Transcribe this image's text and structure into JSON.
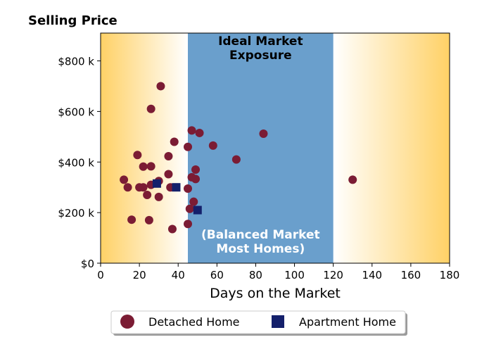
{
  "chart_data": {
    "type": "scatter",
    "title": "Selling Price",
    "xlabel": "Days on the Market",
    "ylabel": "",
    "xlim": [
      0,
      180
    ],
    "ylim": [
      0,
      910000
    ],
    "x_ticks": [
      0,
      20,
      40,
      60,
      80,
      100,
      120,
      140,
      160,
      180
    ],
    "x_tick_labels": [
      "0",
      "20",
      "40",
      "60",
      "80",
      "100",
      "120",
      "140",
      "160",
      "180"
    ],
    "y_ticks": [
      0,
      200000,
      400000,
      600000,
      800000
    ],
    "y_tick_labels": [
      "$0",
      "$200 k",
      "$400 k",
      "$600 k",
      "$800 k"
    ],
    "grid": false,
    "shaded_region": {
      "x_range": [
        45,
        120
      ],
      "color": "#6a9fcc",
      "label_top": [
        "Ideal Market",
        "Exposure"
      ],
      "label_bottom": [
        "(Balanced Market",
        "Most Homes)"
      ]
    },
    "background_gradient_color": "#ffd166",
    "legend_position": "bottom-center",
    "series": [
      {
        "name": "Detached Home",
        "marker": "circle",
        "color": "#7b1c34",
        "points": [
          [
            12,
            330000
          ],
          [
            14,
            300000
          ],
          [
            16,
            172000
          ],
          [
            19,
            428000
          ],
          [
            20,
            300000
          ],
          [
            22,
            382000
          ],
          [
            22,
            300000
          ],
          [
            24,
            270000
          ],
          [
            25,
            170000
          ],
          [
            26,
            383000
          ],
          [
            26,
            310000
          ],
          [
            26,
            610000
          ],
          [
            30,
            325000
          ],
          [
            30,
            262000
          ],
          [
            31,
            700000
          ],
          [
            35,
            423000
          ],
          [
            35,
            352000
          ],
          [
            36,
            300000
          ],
          [
            37,
            135000
          ],
          [
            38,
            480000
          ],
          [
            45,
            460000
          ],
          [
            45,
            295000
          ],
          [
            45,
            155000
          ],
          [
            46,
            215000
          ],
          [
            47,
            525000
          ],
          [
            47,
            340000
          ],
          [
            48,
            243000
          ],
          [
            49,
            370000
          ],
          [
            49,
            333000
          ],
          [
            51,
            515000
          ],
          [
            58,
            465000
          ],
          [
            70,
            410000
          ],
          [
            84,
            512000
          ],
          [
            130,
            330000
          ]
        ]
      },
      {
        "name": "Apartment Home",
        "marker": "square",
        "color": "#14206b",
        "points": [
          [
            29,
            315000
          ],
          [
            39,
            300000
          ],
          [
            50,
            210000
          ]
        ]
      }
    ]
  }
}
